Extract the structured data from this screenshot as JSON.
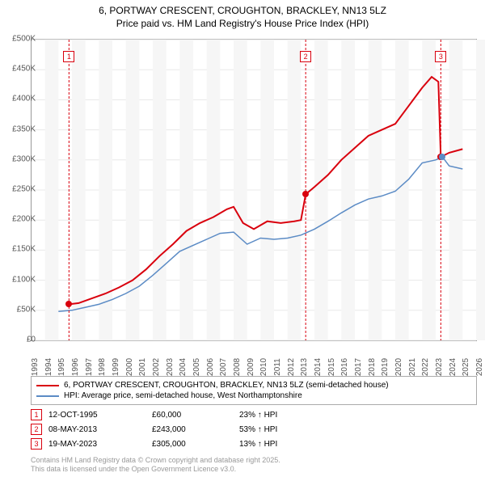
{
  "title": {
    "line1": "6, PORTWAY CRESCENT, CROUGHTON, BRACKLEY, NN13 5LZ",
    "line2": "Price paid vs. HM Land Registry's House Price Index (HPI)"
  },
  "chart": {
    "type": "line",
    "background_color": "#ffffff",
    "grid_color": "#e8e8e8",
    "border_color": "#999999",
    "x_years": [
      1993,
      1994,
      1995,
      1996,
      1997,
      1998,
      1999,
      2000,
      2001,
      2002,
      2003,
      2004,
      2005,
      2006,
      2007,
      2008,
      2009,
      2010,
      2011,
      2012,
      2013,
      2014,
      2015,
      2016,
      2017,
      2018,
      2019,
      2020,
      2021,
      2022,
      2023,
      2024,
      2025,
      2026
    ],
    "y_ticks": [
      0,
      50000,
      100000,
      150000,
      200000,
      250000,
      300000,
      350000,
      400000,
      450000,
      500000
    ],
    "y_tick_labels": [
      "£0",
      "£50K",
      "£100K",
      "£150K",
      "£200K",
      "£250K",
      "£300K",
      "£350K",
      "£400K",
      "£450K",
      "£500K"
    ],
    "ylim": [
      0,
      500000
    ],
    "xlim": [
      1993,
      2026
    ],
    "label_fontsize": 10,
    "label_color": "#555555",
    "series": {
      "property": {
        "label": "6, PORTWAY CRESCENT, CROUGHTON, BRACKLEY, NN13 5LZ (semi-detached house)",
        "color": "#d9000d",
        "line_width": 2,
        "points": [
          [
            1995.78,
            60000
          ],
          [
            1996.5,
            62000
          ],
          [
            1997.5,
            70000
          ],
          [
            1998.5,
            78000
          ],
          [
            1999.5,
            88000
          ],
          [
            2000.5,
            100000
          ],
          [
            2001.5,
            118000
          ],
          [
            2002.5,
            140000
          ],
          [
            2003.5,
            160000
          ],
          [
            2004.5,
            182000
          ],
          [
            2005.5,
            195000
          ],
          [
            2006.5,
            205000
          ],
          [
            2007.5,
            218000
          ],
          [
            2008.0,
            222000
          ],
          [
            2008.7,
            195000
          ],
          [
            2009.5,
            185000
          ],
          [
            2010.5,
            198000
          ],
          [
            2011.5,
            195000
          ],
          [
            2012.5,
            198000
          ],
          [
            2013.0,
            200000
          ],
          [
            2013.35,
            243000
          ],
          [
            2014.0,
            255000
          ],
          [
            2015.0,
            275000
          ],
          [
            2016.0,
            300000
          ],
          [
            2017.0,
            320000
          ],
          [
            2018.0,
            340000
          ],
          [
            2019.0,
            350000
          ],
          [
            2020.0,
            360000
          ],
          [
            2021.0,
            390000
          ],
          [
            2022.0,
            420000
          ],
          [
            2022.7,
            438000
          ],
          [
            2023.2,
            430000
          ],
          [
            2023.38,
            305000
          ],
          [
            2024.0,
            312000
          ],
          [
            2025.0,
            318000
          ]
        ]
      },
      "hpi": {
        "label": "HPI: Average price, semi-detached house, West Northamptonshire",
        "color": "#5b8bc5",
        "line_width": 1.5,
        "points": [
          [
            1995.0,
            48000
          ],
          [
            1996.0,
            50000
          ],
          [
            1997.0,
            55000
          ],
          [
            1998.0,
            60000
          ],
          [
            1999.0,
            68000
          ],
          [
            2000.0,
            78000
          ],
          [
            2001.0,
            90000
          ],
          [
            2002.0,
            108000
          ],
          [
            2003.0,
            128000
          ],
          [
            2004.0,
            148000
          ],
          [
            2005.0,
            158000
          ],
          [
            2006.0,
            168000
          ],
          [
            2007.0,
            178000
          ],
          [
            2008.0,
            180000
          ],
          [
            2009.0,
            160000
          ],
          [
            2010.0,
            170000
          ],
          [
            2011.0,
            168000
          ],
          [
            2012.0,
            170000
          ],
          [
            2013.0,
            175000
          ],
          [
            2014.0,
            185000
          ],
          [
            2015.0,
            198000
          ],
          [
            2016.0,
            212000
          ],
          [
            2017.0,
            225000
          ],
          [
            2018.0,
            235000
          ],
          [
            2019.0,
            240000
          ],
          [
            2020.0,
            248000
          ],
          [
            2021.0,
            268000
          ],
          [
            2022.0,
            295000
          ],
          [
            2023.0,
            300000
          ],
          [
            2023.5,
            305000
          ],
          [
            2024.0,
            290000
          ],
          [
            2025.0,
            285000
          ]
        ]
      }
    },
    "sale_markers": [
      {
        "n": "1",
        "year": 1995.78,
        "price": 60000,
        "color": "#d9000d"
      },
      {
        "n": "2",
        "year": 2013.35,
        "price": 243000,
        "color": "#d9000d"
      },
      {
        "n": "3",
        "year": 2023.38,
        "price": 305000,
        "color": "#d9000d"
      }
    ],
    "hpi_dot": {
      "year": 2023.5,
      "price": 305000,
      "color": "#5b8bc5"
    }
  },
  "legend": {
    "items": [
      {
        "color": "#d9000d",
        "label": "6, PORTWAY CRESCENT, CROUGHTON, BRACKLEY, NN13 5LZ (semi-detached house)"
      },
      {
        "color": "#5b8bc5",
        "label": "HPI: Average price, semi-detached house, West Northamptonshire"
      }
    ]
  },
  "sales": [
    {
      "n": "1",
      "date": "12-OCT-1995",
      "price": "£60,000",
      "delta": "23% ↑ HPI",
      "color": "#d9000d"
    },
    {
      "n": "2",
      "date": "08-MAY-2013",
      "price": "£243,000",
      "delta": "53% ↑ HPI",
      "color": "#d9000d"
    },
    {
      "n": "3",
      "date": "19-MAY-2023",
      "price": "£305,000",
      "delta": "13% ↑ HPI",
      "color": "#d9000d"
    }
  ],
  "footer": {
    "line1": "Contains HM Land Registry data © Crown copyright and database right 2025.",
    "line2": "This data is licensed under the Open Government Licence v3.0."
  }
}
